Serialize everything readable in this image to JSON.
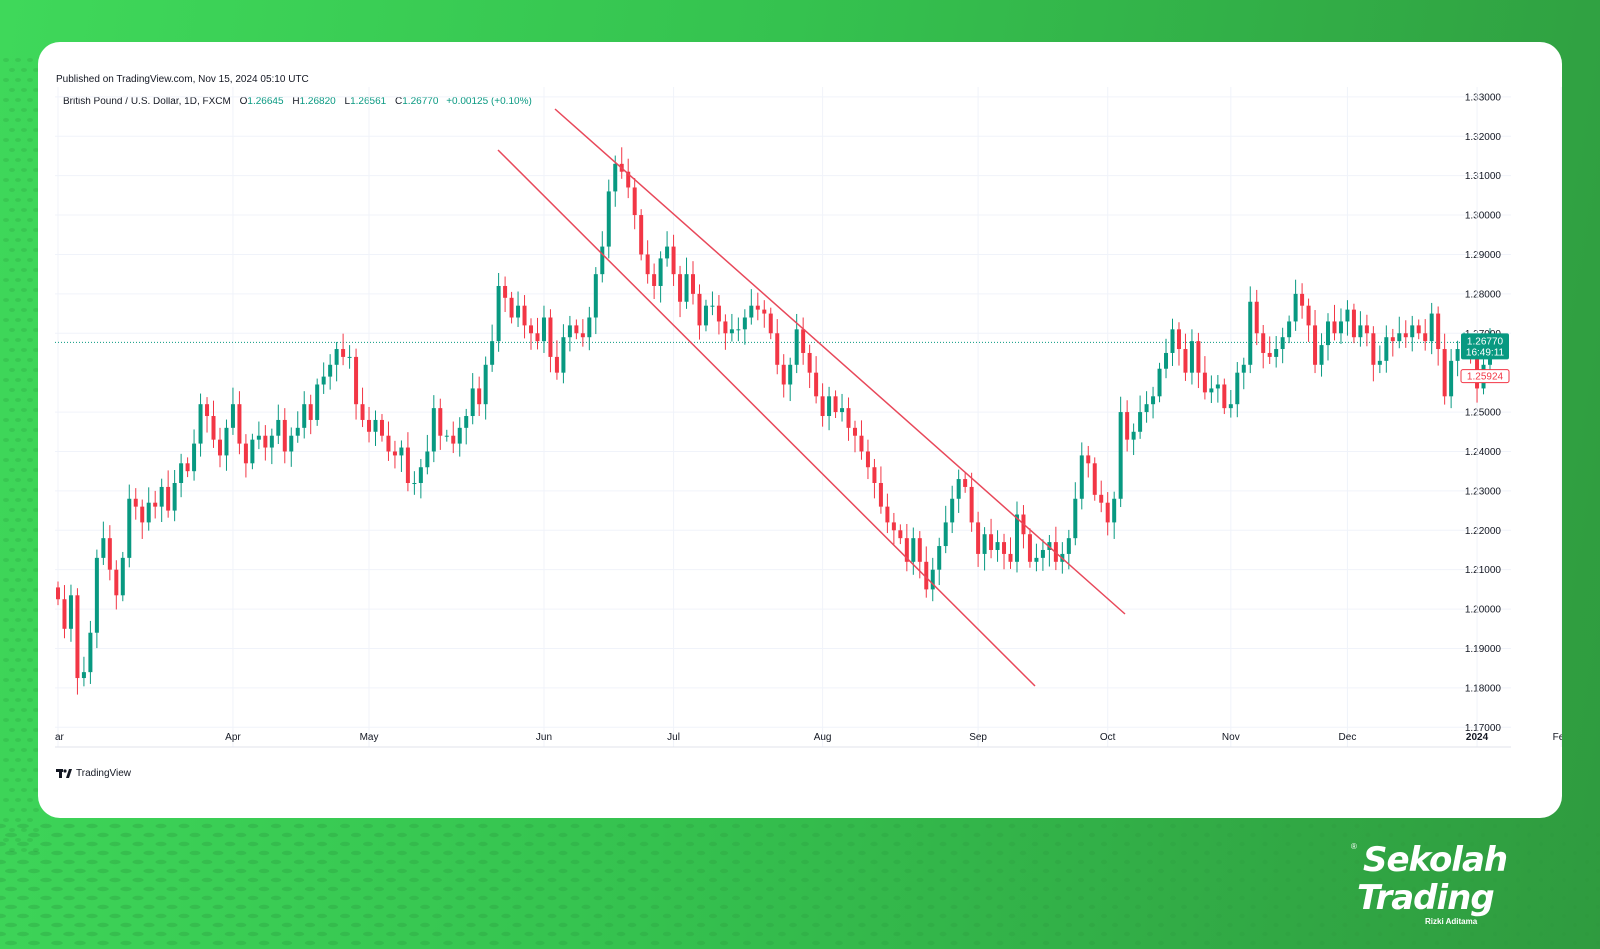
{
  "header": {
    "published": "Published on TradingView.com, Nov 15, 2024 05:10 UTC",
    "symbol": "British Pound / U.S. Dollar, 1D, FXCM",
    "o_label": "O",
    "o_value": "1.26645",
    "h_label": "H",
    "h_value": "1.26820",
    "l_label": "L",
    "l_value": "1.26561",
    "c_label": "C",
    "c_value": "1.26770",
    "change": "+0.00125 (+0.10%)"
  },
  "footer": {
    "tradingview_logo": "TradingView"
  },
  "branding": {
    "line1": "Sekolah",
    "line2": "Trading",
    "line3": "Rizki Aditama",
    "registered": "®"
  },
  "colors": {
    "up": "#089981",
    "down": "#f23645",
    "channel": "#e8485a",
    "grid": "#f0f3fa",
    "axis_text": "#131722",
    "background_green": "#35c24f"
  },
  "chart_data": {
    "type": "candlestick",
    "title": "British Pound / U.S. Dollar, 1D, FXCM",
    "xlabel": "",
    "ylabel": "",
    "ylim": [
      1.165,
      1.3325
    ],
    "grid": true,
    "y_ticks": [
      "1.33000",
      "1.32000",
      "1.31000",
      "1.30000",
      "1.29000",
      "1.28000",
      "1.27000",
      "1.25000",
      "1.24000",
      "1.23000",
      "1.22000",
      "1.21000",
      "1.20000",
      "1.19000",
      "1.18000",
      "1.17000"
    ],
    "x_ticks": [
      "ar",
      "Apr",
      "May",
      "Jun",
      "Jul",
      "Aug",
      "Sep",
      "Oct",
      "Nov",
      "Dec",
      "2024",
      "Feb"
    ],
    "price_labels": [
      {
        "value": 1.2677,
        "text": "1.26770",
        "sub": "16:49:11",
        "color": "#089981"
      },
      {
        "value": 1.25924,
        "text": "1.25924",
        "color": "#f23645"
      }
    ],
    "closes": [
      1.2025,
      1.195,
      1.2035,
      1.1825,
      1.184,
      1.194,
      1.213,
      1.218,
      1.21,
      1.2035,
      1.213,
      1.228,
      1.226,
      1.222,
      1.227,
      1.226,
      1.231,
      1.225,
      1.232,
      1.237,
      1.235,
      1.242,
      1.252,
      1.249,
      1.243,
      1.239,
      1.246,
      1.252,
      1.242,
      1.237,
      1.243,
      1.244,
      1.241,
      1.244,
      1.248,
      1.24,
      1.244,
      1.246,
      1.252,
      1.248,
      1.257,
      1.259,
      1.262,
      1.266,
      1.264,
      1.264,
      1.252,
      1.248,
      1.245,
      1.248,
      1.244,
      1.24,
      1.239,
      1.241,
      1.232,
      1.232,
      1.236,
      1.24,
      1.251,
      1.244,
      1.244,
      1.242,
      1.246,
      1.249,
      1.256,
      1.252,
      1.262,
      1.268,
      1.282,
      1.279,
      1.274,
      1.277,
      1.272,
      1.27,
      1.268,
      1.274,
      1.264,
      1.26,
      1.269,
      1.272,
      1.27,
      1.269,
      1.274,
      1.285,
      1.292,
      1.306,
      1.313,
      1.311,
      1.307,
      1.3,
      1.29,
      1.285,
      1.282,
      1.289,
      1.292,
      1.285,
      1.278,
      1.285,
      1.28,
      1.272,
      1.277,
      1.277,
      1.273,
      1.27,
      1.271,
      1.271,
      1.274,
      1.277,
      1.276,
      1.275,
      1.27,
      1.262,
      1.257,
      1.262,
      1.271,
      1.265,
      1.26,
      1.254,
      1.249,
      1.254,
      1.25,
      1.251,
      1.246,
      1.244,
      1.24,
      1.236,
      1.232,
      1.226,
      1.222,
      1.22,
      1.218,
      1.212,
      1.218,
      1.212,
      1.205,
      1.21,
      1.216,
      1.222,
      1.228,
      1.233,
      1.231,
      1.222,
      1.214,
      1.219,
      1.215,
      1.217,
      1.214,
      1.212,
      1.224,
      1.219,
      1.212,
      1.213,
      1.215,
      1.217,
      1.212,
      1.214,
      1.218,
      1.228,
      1.239,
      1.237,
      1.229,
      1.227,
      1.222,
      1.228,
      1.25,
      1.243,
      1.245,
      1.25,
      1.252,
      1.254,
      1.261,
      1.265,
      1.271,
      1.266,
      1.26,
      1.268,
      1.26,
      1.255,
      1.256,
      1.257,
      1.251,
      1.252,
      1.26,
      1.262,
      1.278,
      1.27,
      1.265,
      1.264,
      1.266,
      1.269,
      1.273,
      1.28,
      1.277,
      1.272,
      1.262,
      1.267,
      1.273,
      1.27,
      1.273,
      1.276,
      1.269,
      1.272,
      1.27,
      1.262,
      1.263,
      1.269,
      1.268,
      1.27,
      1.269,
      1.272,
      1.27,
      1.268,
      1.275,
      1.266,
      1.254,
      1.263,
      1.266,
      1.266,
      1.265,
      1.256,
      1.262,
      1.2677
    ]
  }
}
